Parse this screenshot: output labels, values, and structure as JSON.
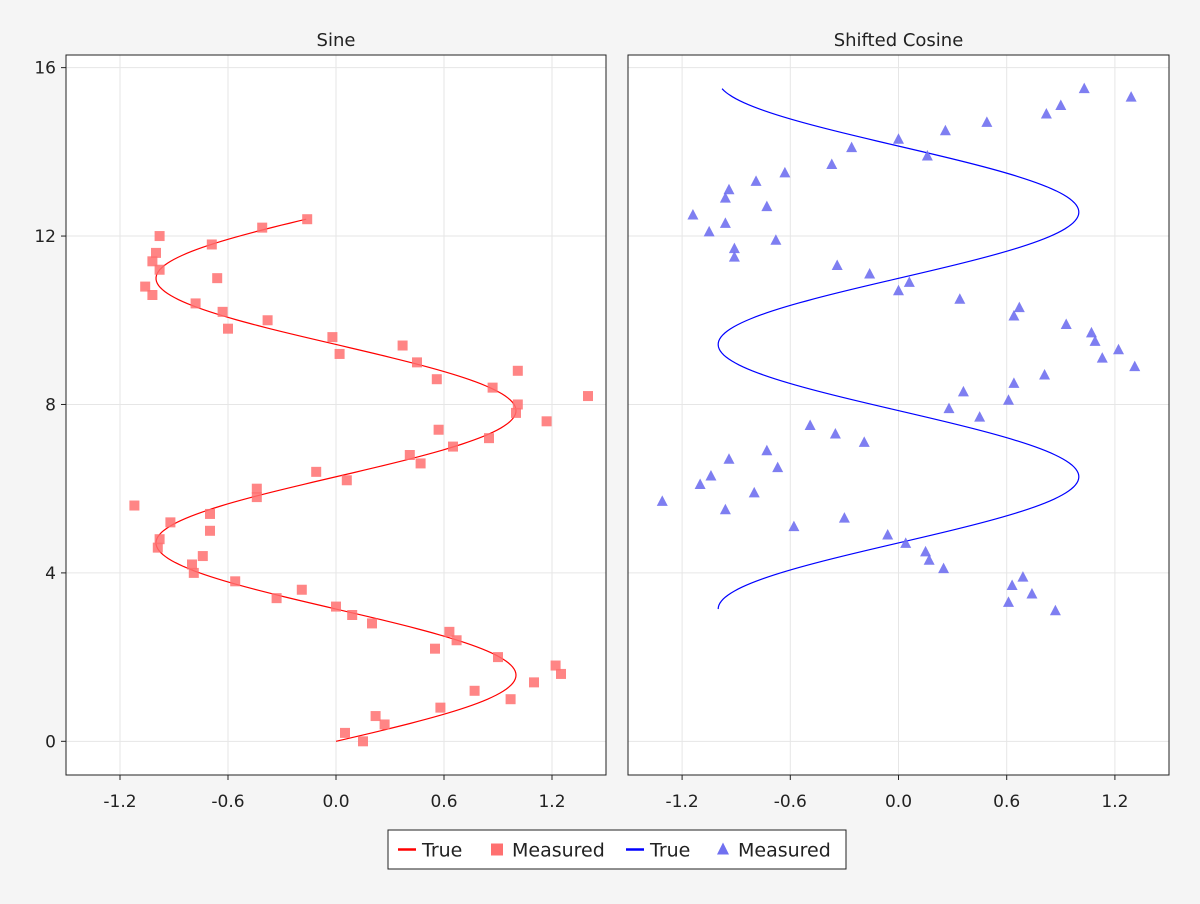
{
  "chart_data": [
    {
      "type": "scatter",
      "title": "Sine",
      "xlabel": "",
      "ylabel": "",
      "xlim": [
        -1.5,
        1.5
      ],
      "ylim": [
        -0.8,
        16.3
      ],
      "xticks": [
        -1.2,
        -0.6,
        0.0,
        0.6,
        1.2
      ],
      "xtick_labels": [
        "-1.2",
        "-0.6",
        "0.0",
        "0.6",
        "1.2"
      ],
      "yticks": [
        0,
        4,
        8,
        12,
        16
      ],
      "ytick_labels": [
        "0",
        "4",
        "8",
        "12",
        "16"
      ],
      "grid": true,
      "series": [
        {
          "name": "True",
          "kind": "line",
          "color": "#ff0000",
          "function": "sin",
          "t_range": [
            0,
            12.4
          ]
        },
        {
          "name": "Measured",
          "kind": "scatter",
          "marker": "square",
          "color": "#ff7070",
          "points": [
            [
              0.05,
              0.2
            ],
            [
              0.15,
              0.0
            ],
            [
              0.22,
              0.6
            ],
            [
              0.27,
              0.4
            ],
            [
              0.58,
              0.8
            ],
            [
              0.77,
              1.2
            ],
            [
              0.97,
              1.0
            ],
            [
              1.1,
              1.4
            ],
            [
              1.22,
              1.8
            ],
            [
              1.25,
              1.6
            ],
            [
              0.9,
              2.0
            ],
            [
              0.55,
              2.2
            ],
            [
              0.63,
              2.6
            ],
            [
              0.67,
              2.4
            ],
            [
              0.2,
              2.8
            ],
            [
              0.09,
              3.0
            ],
            [
              0.0,
              3.2
            ],
            [
              -0.33,
              3.4
            ],
            [
              -0.19,
              3.6
            ],
            [
              -0.56,
              3.8
            ],
            [
              -0.79,
              4.0
            ],
            [
              -0.8,
              4.2
            ],
            [
              -0.74,
              4.4
            ],
            [
              -0.99,
              4.6
            ],
            [
              -0.98,
              4.8
            ],
            [
              -0.7,
              5.0
            ],
            [
              -0.92,
              5.2
            ],
            [
              -0.7,
              5.4
            ],
            [
              -1.12,
              5.6
            ],
            [
              -0.44,
              5.8
            ],
            [
              -0.44,
              6.0
            ],
            [
              0.06,
              6.2
            ],
            [
              -0.11,
              6.4
            ],
            [
              0.47,
              6.6
            ],
            [
              0.41,
              6.8
            ],
            [
              0.65,
              7.0
            ],
            [
              0.85,
              7.2
            ],
            [
              0.57,
              7.4
            ],
            [
              1.17,
              7.6
            ],
            [
              1.0,
              7.8
            ],
            [
              1.01,
              8.0
            ],
            [
              1.4,
              8.2
            ],
            [
              0.87,
              8.4
            ],
            [
              0.56,
              8.6
            ],
            [
              1.01,
              8.8
            ],
            [
              0.45,
              9.0
            ],
            [
              0.02,
              9.2
            ],
            [
              0.37,
              9.4
            ],
            [
              -0.02,
              9.6
            ],
            [
              -0.6,
              9.8
            ],
            [
              -0.38,
              10.0
            ],
            [
              -0.63,
              10.2
            ],
            [
              -0.78,
              10.4
            ],
            [
              -1.02,
              10.6
            ],
            [
              -1.06,
              10.8
            ],
            [
              -0.66,
              11.0
            ],
            [
              -0.98,
              11.2
            ],
            [
              -1.02,
              11.4
            ],
            [
              -1.0,
              11.6
            ],
            [
              -0.69,
              11.8
            ],
            [
              -0.98,
              12.0
            ],
            [
              -0.41,
              12.2
            ],
            [
              -0.16,
              12.4
            ]
          ]
        }
      ]
    },
    {
      "type": "scatter",
      "title": "Shifted Cosine",
      "xlabel": "",
      "ylabel": "",
      "xlim": [
        -1.5,
        1.5
      ],
      "ylim": [
        -0.8,
        16.3
      ],
      "xticks": [
        -1.2,
        -0.6,
        0.0,
        0.6,
        1.2
      ],
      "xtick_labels": [
        "-1.2",
        "-0.6",
        "0.0",
        "0.6",
        "1.2"
      ],
      "yticks": [
        0,
        4,
        8,
        12,
        16
      ],
      "ytick_labels": [
        "0",
        "4",
        "8",
        "12",
        "16"
      ],
      "grid": true,
      "series": [
        {
          "name": "True",
          "kind": "line",
          "color": "#0000ff",
          "function": "cos",
          "t_range": [
            3.14,
            15.5
          ]
        },
        {
          "name": "Measured",
          "kind": "scatter",
          "marker": "triangle",
          "color": "#7070f0",
          "points": [
            [
              0.87,
              3.1
            ],
            [
              0.61,
              3.3
            ],
            [
              0.74,
              3.5
            ],
            [
              0.63,
              3.7
            ],
            [
              0.69,
              3.9
            ],
            [
              0.25,
              4.1
            ],
            [
              0.17,
              4.3
            ],
            [
              0.15,
              4.5
            ],
            [
              0.04,
              4.7
            ],
            [
              -0.06,
              4.9
            ],
            [
              -0.58,
              5.1
            ],
            [
              -0.3,
              5.3
            ],
            [
              -0.96,
              5.5
            ],
            [
              -1.31,
              5.7
            ],
            [
              -0.8,
              5.9
            ],
            [
              -1.1,
              6.1
            ],
            [
              -1.04,
              6.3
            ],
            [
              -0.67,
              6.5
            ],
            [
              -0.94,
              6.7
            ],
            [
              -0.73,
              6.9
            ],
            [
              -0.19,
              7.1
            ],
            [
              -0.35,
              7.3
            ],
            [
              -0.49,
              7.5
            ],
            [
              0.45,
              7.7
            ],
            [
              0.28,
              7.9
            ],
            [
              0.61,
              8.1
            ],
            [
              0.36,
              8.3
            ],
            [
              0.64,
              8.5
            ],
            [
              0.81,
              8.7
            ],
            [
              1.31,
              8.9
            ],
            [
              1.13,
              9.1
            ],
            [
              1.22,
              9.3
            ],
            [
              1.09,
              9.5
            ],
            [
              1.07,
              9.7
            ],
            [
              0.93,
              9.9
            ],
            [
              0.64,
              10.1
            ],
            [
              0.67,
              10.3
            ],
            [
              0.34,
              10.5
            ],
            [
              0.06,
              10.9
            ],
            [
              0.0,
              10.7
            ],
            [
              -0.16,
              11.1
            ],
            [
              -0.34,
              11.3
            ],
            [
              -0.91,
              11.5
            ],
            [
              -0.91,
              11.7
            ],
            [
              -0.68,
              11.9
            ],
            [
              -1.05,
              12.1
            ],
            [
              -0.96,
              12.3
            ],
            [
              -1.14,
              12.5
            ],
            [
              -0.73,
              12.7
            ],
            [
              -0.96,
              12.9
            ],
            [
              -0.94,
              13.1
            ],
            [
              -0.79,
              13.3
            ],
            [
              -0.63,
              13.5
            ],
            [
              -0.37,
              13.7
            ],
            [
              0.16,
              13.9
            ],
            [
              -0.26,
              14.1
            ],
            [
              0.0,
              14.3
            ],
            [
              0.26,
              14.5
            ],
            [
              0.49,
              14.7
            ],
            [
              0.82,
              14.9
            ],
            [
              0.9,
              15.1
            ],
            [
              1.29,
              15.3
            ],
            [
              1.03,
              15.5
            ]
          ]
        }
      ]
    }
  ],
  "legend": {
    "placement": "bottom-center",
    "items": [
      {
        "label": "True",
        "symbol": "line",
        "color": "#ff0000"
      },
      {
        "label": "Measured",
        "symbol": "square",
        "color": "#ff7070"
      },
      {
        "label": "True",
        "symbol": "line",
        "color": "#0000ff"
      },
      {
        "label": "Measured",
        "symbol": "triangle",
        "color": "#7070f0"
      }
    ]
  }
}
